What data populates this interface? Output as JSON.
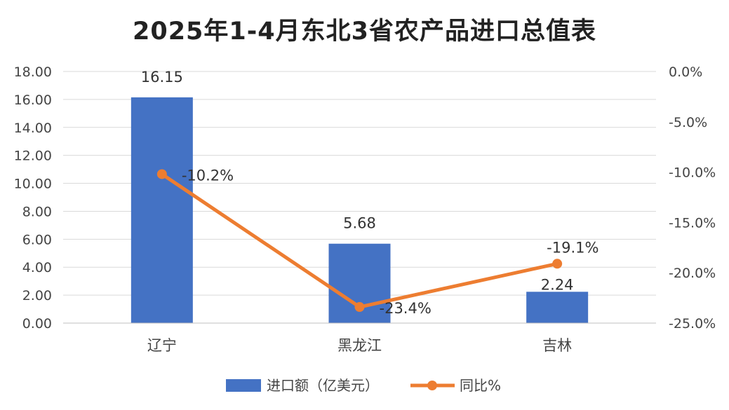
{
  "chart_data": {
    "type": "bar",
    "title": "2025年1-4月东北3省农产品进口总值表",
    "categories": [
      "辽宁",
      "黑龙江",
      "吉林"
    ],
    "series": [
      {
        "name": "进口额（亿美元）",
        "type": "bar",
        "axis": "left",
        "values": [
          16.15,
          5.68,
          2.24
        ],
        "labels": [
          "16.15",
          "5.68",
          "2.24"
        ]
      },
      {
        "name": "同比%",
        "type": "line",
        "axis": "right",
        "values": [
          -10.2,
          -23.4,
          -19.1
        ],
        "labels": [
          "-10.2%",
          "-23.4%",
          "-19.1%"
        ]
      }
    ],
    "y_left": {
      "ylim": [
        0,
        18
      ],
      "ticks": [
        "0.00",
        "2.00",
        "4.00",
        "6.00",
        "8.00",
        "10.00",
        "12.00",
        "14.00",
        "16.00",
        "18.00"
      ]
    },
    "y_right": {
      "ylim": [
        -25,
        0
      ],
      "ticks": [
        "-25.0%",
        "-20.0%",
        "-15.0%",
        "-10.0%",
        "-5.0%",
        "0.0%"
      ]
    },
    "grid": true,
    "legend_position": "bottom",
    "colors": {
      "bar": "#4472C4",
      "line": "#ED7D31",
      "grid": "#D9D9D9"
    }
  }
}
